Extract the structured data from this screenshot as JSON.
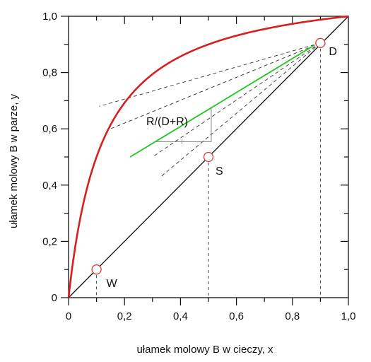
{
  "chart_data": {
    "type": "line",
    "xlabel": "ułamek molowy B w cieczy,   x",
    "ylabel": "ułamek molowy B w parze,   y",
    "xlim": [
      0,
      1
    ],
    "ylim": [
      0,
      1
    ],
    "x_ticks": [
      "0",
      "0,2",
      "0,4",
      "0,6",
      "0,8",
      "1,0"
    ],
    "y_ticks": [
      "0",
      "0,2",
      "0,4",
      "0,6",
      "0,8",
      "1,0"
    ],
    "grid": false,
    "equilibrium_curve": {
      "relative_volatility": 9,
      "color": "#d42020"
    },
    "diagonal": {
      "x": [
        0,
        1
      ],
      "y": [
        0,
        1
      ],
      "color": "#111111"
    },
    "operating_line": {
      "x": [
        0.22,
        0.875
      ],
      "y": [
        0.5,
        0.895
      ],
      "color": "#1ec81e"
    },
    "points": [
      {
        "label": "W",
        "x": 0.1,
        "y": 0.1
      },
      {
        "label": "S",
        "x": 0.5,
        "y": 0.5
      },
      {
        "label": "D",
        "x": 0.9,
        "y": 0.905
      }
    ],
    "dashed_lines_from_D": [
      {
        "x_end": 0.11,
        "y_end": 0.68
      },
      {
        "x_end": 0.15,
        "y_end": 0.6
      },
      {
        "x_end": 0.3,
        "y_end": 0.5
      },
      {
        "x_end": 0.33,
        "y_end": 0.43
      }
    ],
    "annotation": {
      "text": "R/(D+R)",
      "x": 0.27,
      "y": 0.62
    }
  }
}
